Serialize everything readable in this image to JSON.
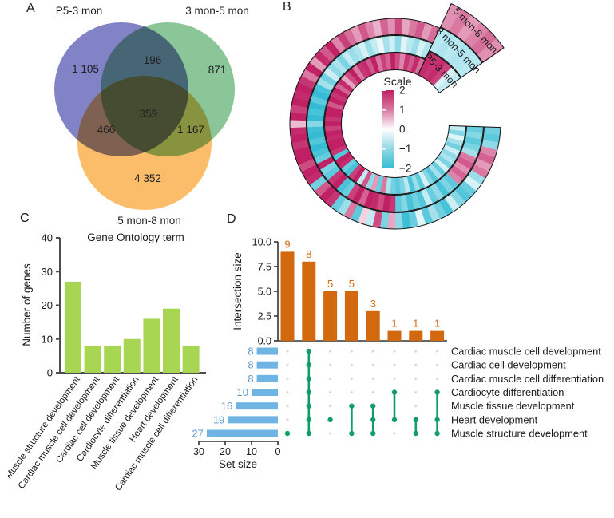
{
  "labels": {
    "a": "A",
    "b": "B",
    "c": "C",
    "d": "D"
  },
  "colors": {
    "venn_purple": "#8183c6",
    "venn_green": "#8ac697",
    "venn_orange": "#fbbd6a",
    "heat_pos": "#c02064",
    "heat_neg": "#35bcd4",
    "go_bar": "#a8d653",
    "upset_bar_orange": "#d2690f",
    "upset_bar_blue": "#6fb4e2",
    "upset_blue_label": "#5d9bcd",
    "upset_dot_green": "#119e66",
    "upset_dot_gray": "#d9d9d9",
    "axis": "#4d4d4d",
    "text": "#1f1f1f"
  },
  "chart_data": [
    {
      "type": "venn",
      "panel": "A",
      "sets": [
        {
          "label": "P5-3 mon",
          "color_key": "venn_purple"
        },
        {
          "label": "3 mon-5 mon",
          "color_key": "venn_green"
        },
        {
          "label": "5 mon-8 mon",
          "color_key": "venn_orange"
        }
      ],
      "region_values": {
        "only_p53": "1 105",
        "only_35": "871",
        "only_58": "4 352",
        "p53_and_35": "196",
        "p53_and_58": "466",
        "m35_and_58": "1 167",
        "all_three": "359"
      }
    },
    {
      "type": "heatmap",
      "subtype": "circular",
      "panel": "B",
      "scale_title": "Scale",
      "scale_ticks": [
        "2",
        "1",
        "0",
        "−1",
        "−2"
      ],
      "scale_range": [
        -2,
        2
      ],
      "rings": [
        {
          "label": "5 mon-8 mon",
          "values": [
            -1.4,
            -1.6,
            -1.1,
            1.1,
            1.4,
            0.9,
            1.2,
            -1.0,
            -0.4,
            -1.5,
            -1.7,
            -1.2,
            -0.5,
            -1.8,
            -1.4,
            -0.9,
            -1.6,
            -0.3,
            -1.5,
            -1.9,
            -1.1,
            0.8,
            -1.3,
            1.6,
            -0.6,
            0.4,
            -1.6,
            1.2,
            -1.0,
            -1.5,
            1.8,
            2,
            1.5,
            -1.4,
            1.9,
            2,
            1.6,
            2,
            2,
            1.8,
            2,
            1.9,
            0.6,
            2,
            1.7,
            2,
            1.9,
            2,
            1.8,
            1.2,
            2,
            0.9,
            1.9,
            1.5,
            2,
            1.1,
            1.7,
            1.3,
            0.9,
            1.5,
            1.1,
            0.7,
            1.4,
            1.0,
            1.6,
            0.8,
            1.2,
            1.5,
            0.9,
            1.3
          ],
          "wedge_values": [
            1.0,
            1.2,
            0.9,
            1.1,
            1.3,
            1.0
          ]
        },
        {
          "label": "3 mon-5 mon",
          "values": [
            -1.5,
            -1.2,
            -1.6,
            -1.3,
            -0.9,
            1.2,
            1.5,
            1.0,
            1.4,
            1.1,
            -1.6,
            -1.3,
            -1.8,
            -1.1,
            -1.5,
            -0.6,
            -1.7,
            -1.4,
            -1.8,
            -1.2,
            -1.6,
            1.8,
            2,
            1.6,
            1.9,
            2,
            1.4,
            2,
            1.7,
            -1.5,
            -1.8,
            2,
            1.8,
            -1.6,
            -1.3,
            2,
            -1.5,
            -1.8,
            -2,
            -1.7,
            -2,
            -1.9,
            -1.2,
            -2,
            -1.8,
            -2,
            -1.6,
            -2,
            -1.8,
            -0.9,
            -1.4,
            -0.5,
            -1.1,
            -0.8,
            -1.3,
            -0.6,
            -1.0,
            -0.8,
            -0.4,
            -1.0,
            -0.6,
            -0.2,
            -0.9,
            -0.5,
            -1.1,
            -0.3,
            -0.7,
            -1.0,
            -0.4,
            -0.8
          ],
          "wedge_values": [
            -0.7,
            -0.8,
            -0.7,
            -0.8,
            -0.75,
            -0.7
          ]
        },
        {
          "label": "P5-3 mon",
          "values": [
            -0.6,
            -1.2,
            -0.3,
            -0.9,
            -1.4,
            -0.5,
            -1.1,
            -0.8,
            -1.3,
            -0.4,
            -1.5,
            -0.9,
            -1.7,
            -1.2,
            -0.4,
            -1.6,
            -1.0,
            -1.8,
            -0.7,
            -1.3,
            -1.6,
            -1.4,
            -0.8,
            1.2,
            -1.5,
            0.9,
            -1.1,
            1.5,
            -0.6,
            2,
            1.7,
            -1.8,
            -1.5,
            1.9,
            2,
            -1.7,
            1.8,
            2,
            2,
            1.9,
            2,
            1.7,
            2,
            1.8,
            2,
            2,
            1.5,
            2,
            1.8,
            2,
            1.4,
            1.9,
            0.8,
            1.6,
            2,
            1.2,
            1.8,
            1.9,
            1.5,
            2,
            1.2,
            1.7,
            1.4,
            2,
            1.6,
            1.1,
            1.8,
            1.5,
            1.9,
            1.3
          ],
          "wedge_values": [
            1.9,
            1.8,
            1.9,
            1.7,
            -0.4,
            -0.6
          ]
        }
      ]
    },
    {
      "type": "bar",
      "panel": "C",
      "title": "Gene Ontology term",
      "ylabel": "Number of genes",
      "ylim": [
        0,
        40
      ],
      "yticks": [
        0,
        10,
        20,
        30,
        40
      ],
      "categories": [
        "Muscle structure development",
        "Cardiac muscle cell development",
        "Cardiac cell development",
        "Cardiocyte differentiation",
        "Muscle tissue development",
        "Heart development",
        "Cardiac muscle cell differentiation"
      ],
      "values": [
        27,
        8,
        8,
        10,
        16,
        19,
        8
      ]
    },
    {
      "type": "upset",
      "panel": "D",
      "intersection_axis_label": "Intersection size",
      "intersection_yticks": [
        "0.0",
        "2.5",
        "5.0",
        "7.5",
        "10.0"
      ],
      "intersection_ylim": [
        0,
        10
      ],
      "set_axis_label": "Set size",
      "set_xticks": [
        "30",
        "20",
        "10",
        "0"
      ],
      "rows": [
        "Cardiac muscle cell development",
        "Cardiac cell development",
        "Cardiac muscle cell differentiation",
        "Cardiocyte differentiation",
        "Muscle tissue development",
        "Heart development",
        "Muscle structure development"
      ],
      "set_sizes": [
        8,
        8,
        8,
        10,
        16,
        19,
        27
      ],
      "intersections": [
        {
          "size": 9,
          "members": [
            7
          ]
        },
        {
          "size": 8,
          "members": [
            1,
            2,
            3,
            4,
            5,
            6,
            7
          ]
        },
        {
          "size": 5,
          "members": [
            6
          ]
        },
        {
          "size": 5,
          "members": [
            5,
            7
          ]
        },
        {
          "size": 3,
          "members": [
            5,
            6,
            7
          ]
        },
        {
          "size": 1,
          "members": [
            4,
            6
          ]
        },
        {
          "size": 1,
          "members": [
            6,
            7
          ]
        },
        {
          "size": 1,
          "members": [
            4,
            6,
            7
          ]
        }
      ]
    }
  ]
}
